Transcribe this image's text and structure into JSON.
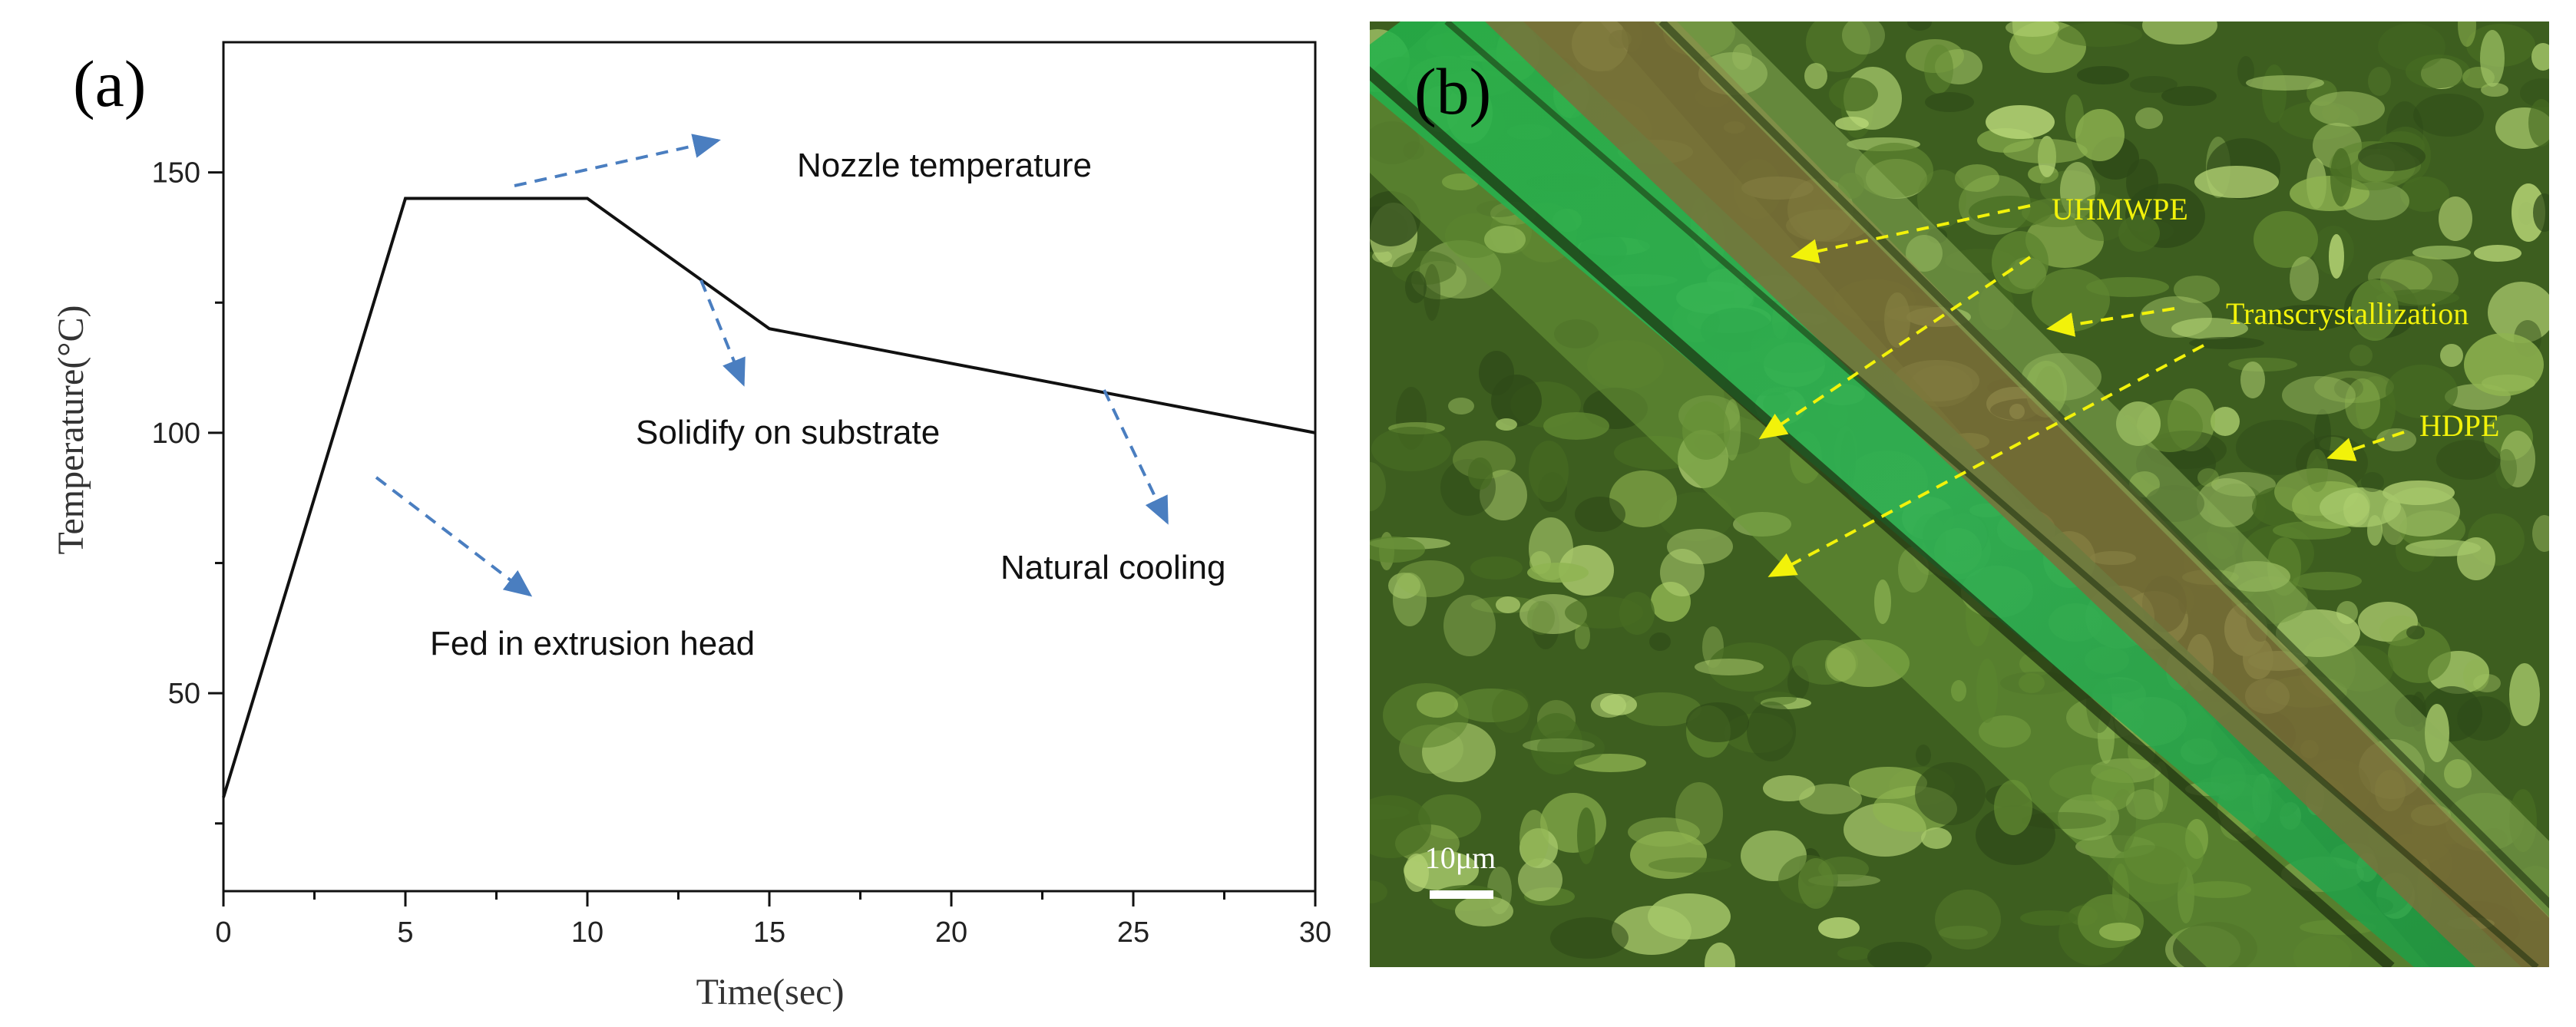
{
  "panel_a": {
    "label": "(a)",
    "annotations": {
      "nozzle": "Nozzle temperature",
      "solidify": "Solidify on substrate",
      "natural": "Natural cooling",
      "fed": "Fed in extrusion head"
    }
  },
  "panel_b": {
    "label": "(b)",
    "labels": {
      "uhmwpe": "UHMWPE",
      "trans": "Transcrystallization",
      "hdpe": "HDPE"
    },
    "scale_bar": "10μm"
  },
  "colors": {
    "line": "#111111",
    "arrow": "#4a7ec0",
    "label_yellow": "#f2f20a",
    "micro_dark": "#2e4a18",
    "micro_mid": "#6a8c34",
    "micro_light": "#b9d878",
    "band_green": "#22b24a",
    "band_brown": "#7e6e3a"
  },
  "chart_data": {
    "type": "line",
    "xlabel": "Time(sec)",
    "ylabel": "Temperature(°C)",
    "xlim": [
      0,
      30
    ],
    "ylim": [
      12,
      175
    ],
    "xticks": [
      0,
      5,
      10,
      15,
      20,
      25,
      30
    ],
    "yticks": [
      50,
      100,
      150
    ],
    "series": [
      {
        "x": [
          0,
          5,
          10,
          15,
          30
        ],
        "values": [
          30,
          145,
          145,
          120,
          100
        ]
      }
    ]
  }
}
